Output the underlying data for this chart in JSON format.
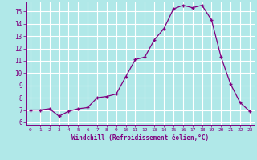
{
  "x": [
    0,
    1,
    2,
    3,
    4,
    5,
    6,
    7,
    8,
    9,
    10,
    11,
    12,
    13,
    14,
    15,
    16,
    17,
    18,
    19,
    20,
    21,
    22,
    23
  ],
  "y": [
    7.0,
    7.0,
    7.1,
    6.5,
    6.9,
    7.1,
    7.2,
    8.0,
    8.1,
    8.3,
    9.7,
    11.1,
    11.3,
    12.7,
    13.6,
    15.2,
    15.5,
    15.3,
    15.5,
    14.3,
    11.3,
    9.1,
    7.6,
    6.9
  ],
  "xlabel": "Windchill (Refroidissement éolien,°C)",
  "xlim": [
    -0.5,
    23.5
  ],
  "ylim": [
    5.8,
    15.8
  ],
  "yticks": [
    6,
    7,
    8,
    9,
    10,
    11,
    12,
    13,
    14,
    15
  ],
  "xticks": [
    0,
    1,
    2,
    3,
    4,
    5,
    6,
    7,
    8,
    9,
    10,
    11,
    12,
    13,
    14,
    15,
    16,
    17,
    18,
    19,
    20,
    21,
    22,
    23
  ],
  "line_color": "#800080",
  "marker_color": "#800080",
  "bg_color": "#b0e8e8",
  "grid_color": "#ffffff",
  "xlabel_color": "#800080",
  "tick_color": "#800080"
}
